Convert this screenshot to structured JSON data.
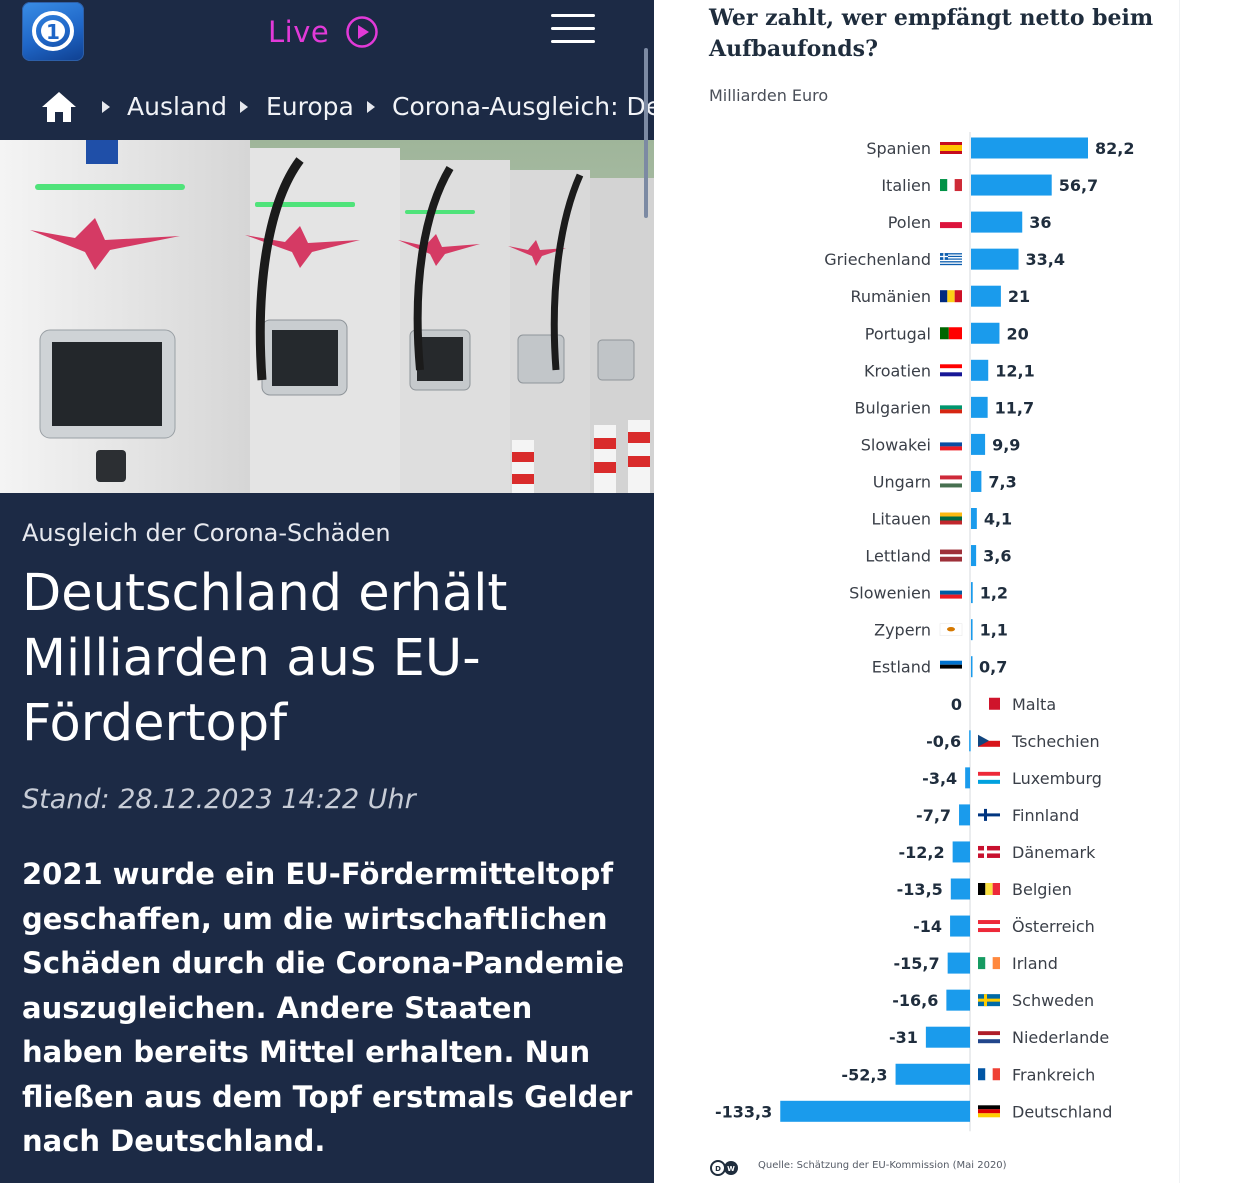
{
  "app": {
    "live_label": "Live",
    "breadcrumb": [
      "Ausland",
      "Europa",
      "Corona-Ausgleich: Deu"
    ]
  },
  "article": {
    "kicker": "Ausgleich der Corona-Schäden",
    "headline": "Deutschland erhält Milliarden aus EU-Fördertopf",
    "stand": "Stand: 28.12.2023 14:22 Uhr",
    "lead": "2021 wurde ein EU-Fördermitteltopf geschaffen, um die wirtschaftlichen Schäden durch die Corona-Pandemie auszugleichen. Andere Staaten haben bereits Mittel erhalten. Nun fließen aus dem Topf erstmals Gelder nach Deutschland."
  },
  "colors": {
    "app_background": "#1c2a45",
    "live_accent": "#e23ad8",
    "bar_color": "#1a9bec"
  },
  "chart_data": {
    "type": "bar",
    "orientation": "horizontal",
    "title": "Wer zahlt, wer empfängt netto beim Aufbaufonds?",
    "unit": "Milliarden Euro",
    "source": "Quelle: Schätzung der EU-Kommission (Mai 2020)",
    "categories": [
      "Spanien",
      "Italien",
      "Polen",
      "Griechenland",
      "Rumänien",
      "Portugal",
      "Kroatien",
      "Bulgarien",
      "Slowakei",
      "Ungarn",
      "Litauen",
      "Lettland",
      "Slowenien",
      "Zypern",
      "Estland",
      "Malta",
      "Tschechien",
      "Luxemburg",
      "Finnland",
      "Dänemark",
      "Belgien",
      "Österreich",
      "Irland",
      "Schweden",
      "Niederlande",
      "Frankreich",
      "Deutschland"
    ],
    "values": [
      82.2,
      56.7,
      36,
      33.4,
      21,
      20,
      12.1,
      11.7,
      9.9,
      7.3,
      4.1,
      3.6,
      1.2,
      1.1,
      0.7,
      0,
      -0.6,
      -3.4,
      -7.7,
      -12.2,
      -13.5,
      -14,
      -15.7,
      -16.6,
      -31,
      -52.3,
      -133.3
    ],
    "value_labels": [
      "82,2",
      "56,7",
      "36",
      "33,4",
      "21",
      "20",
      "12,1",
      "11,7",
      "9,9",
      "7,3",
      "4,1",
      "3,6",
      "1,2",
      "1,1",
      "0,7",
      "0",
      "-0,6",
      "-3,4",
      "-7,7",
      "-12,2",
      "-13,5",
      "-14",
      "-15,7",
      "-16,6",
      "-31",
      "-52,3",
      "-133,3"
    ],
    "flag_icons": [
      "spain-flag-icon",
      "italy-flag-icon",
      "poland-flag-icon",
      "greece-flag-icon",
      "romania-flag-icon",
      "portugal-flag-icon",
      "croatia-flag-icon",
      "bulgaria-flag-icon",
      "slovakia-flag-icon",
      "hungary-flag-icon",
      "lithuania-flag-icon",
      "latvia-flag-icon",
      "slovenia-flag-icon",
      "cyprus-flag-icon",
      "estonia-flag-icon",
      "malta-flag-icon",
      "czechia-flag-icon",
      "luxembourg-flag-icon",
      "finland-flag-icon",
      "denmark-flag-icon",
      "belgium-flag-icon",
      "austria-flag-icon",
      "ireland-flag-icon",
      "sweden-flag-icon",
      "netherlands-flag-icon",
      "france-flag-icon",
      "germany-flag-icon"
    ],
    "grid": false,
    "legend": "none"
  }
}
